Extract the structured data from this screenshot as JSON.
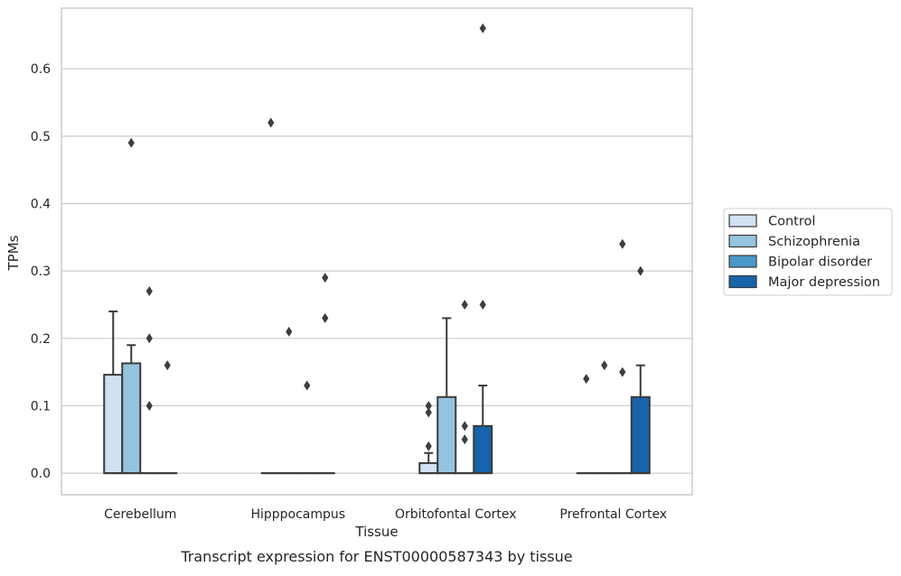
{
  "caption": "Transcript expression for ENST00000587343 by tissue",
  "chart_data": {
    "type": "box",
    "title": "",
    "xlabel": "Tissue",
    "ylabel": "TPMs",
    "ylim": [
      -0.032,
      0.69
    ],
    "yticks": [
      0.0,
      0.1,
      0.2,
      0.3,
      0.4,
      0.5,
      0.6
    ],
    "ytick_labels": [
      "0.0",
      "0.1",
      "0.2",
      "0.3",
      "0.4",
      "0.5",
      "0.6"
    ],
    "grid": "horizontal",
    "legend_position": "right-center",
    "categories": [
      "Cerebellum",
      "Hipppocampus",
      "Orbitofontal Cortex",
      "Prefrontal Cortex"
    ],
    "series": [
      {
        "name": "Control",
        "color": "#d0e1f2",
        "boxes": [
          {
            "q1": 0.0,
            "median": 0.0,
            "q3": 0.146,
            "whisker_low": 0.0,
            "whisker_high": 0.24,
            "outliers": []
          },
          {
            "q1": 0.0,
            "median": 0.0,
            "q3": 0.0,
            "whisker_low": 0.0,
            "whisker_high": 0.0,
            "outliers": [
              0.52
            ]
          },
          {
            "q1": 0.0,
            "median": 0.0,
            "q3": 0.015,
            "whisker_low": 0.0,
            "whisker_high": 0.03,
            "outliers": [
              0.04,
              0.09,
              0.1
            ]
          },
          {
            "q1": 0.0,
            "median": 0.0,
            "q3": 0.0,
            "whisker_low": 0.0,
            "whisker_high": 0.0,
            "outliers": [
              0.14
            ]
          }
        ]
      },
      {
        "name": "Schizophrenia",
        "color": "#94c4df",
        "boxes": [
          {
            "q1": 0.0,
            "median": 0.0,
            "q3": 0.163,
            "whisker_low": 0.0,
            "whisker_high": 0.19,
            "outliers": [
              0.49
            ]
          },
          {
            "q1": 0.0,
            "median": 0.0,
            "q3": 0.0,
            "whisker_low": 0.0,
            "whisker_high": 0.0,
            "outliers": [
              0.21
            ]
          },
          {
            "q1": 0.0,
            "median": 0.0,
            "q3": 0.113,
            "whisker_low": 0.0,
            "whisker_high": 0.23,
            "outliers": []
          },
          {
            "q1": 0.0,
            "median": 0.0,
            "q3": 0.0,
            "whisker_low": 0.0,
            "whisker_high": 0.0,
            "outliers": [
              0.16
            ]
          }
        ]
      },
      {
        "name": "Bipolar disorder",
        "color": "#4a98c9",
        "boxes": [
          {
            "q1": 0.0,
            "median": 0.0,
            "q3": 0.0,
            "whisker_low": 0.0,
            "whisker_high": 0.0,
            "outliers": [
              0.1,
              0.2,
              0.27
            ]
          },
          {
            "q1": 0.0,
            "median": 0.0,
            "q3": 0.0,
            "whisker_low": 0.0,
            "whisker_high": 0.0,
            "outliers": [
              0.13
            ]
          },
          {
            "q1": 0.0,
            "median": 0.0,
            "q3": 0.0,
            "whisker_low": 0.0,
            "whisker_high": 0.0,
            "outliers": [
              0.05,
              0.07,
              0.25
            ]
          },
          {
            "q1": 0.0,
            "median": 0.0,
            "q3": 0.0,
            "whisker_low": 0.0,
            "whisker_high": 0.0,
            "outliers": [
              0.15,
              0.34
            ]
          }
        ]
      },
      {
        "name": "Major depression",
        "color": "#1764ab",
        "boxes": [
          {
            "q1": 0.0,
            "median": 0.0,
            "q3": 0.0,
            "whisker_low": 0.0,
            "whisker_high": 0.0,
            "outliers": [
              0.16
            ]
          },
          {
            "q1": 0.0,
            "median": 0.0,
            "q3": 0.0,
            "whisker_low": 0.0,
            "whisker_high": 0.0,
            "outliers": [
              0.23,
              0.29
            ]
          },
          {
            "q1": 0.0,
            "median": 0.0,
            "q3": 0.07,
            "whisker_low": 0.0,
            "whisker_high": 0.13,
            "outliers": [
              0.25,
              0.66
            ]
          },
          {
            "q1": 0.0,
            "median": 0.0,
            "q3": 0.113,
            "whisker_low": 0.0,
            "whisker_high": 0.16,
            "outliers": [
              0.3
            ]
          }
        ]
      }
    ]
  }
}
